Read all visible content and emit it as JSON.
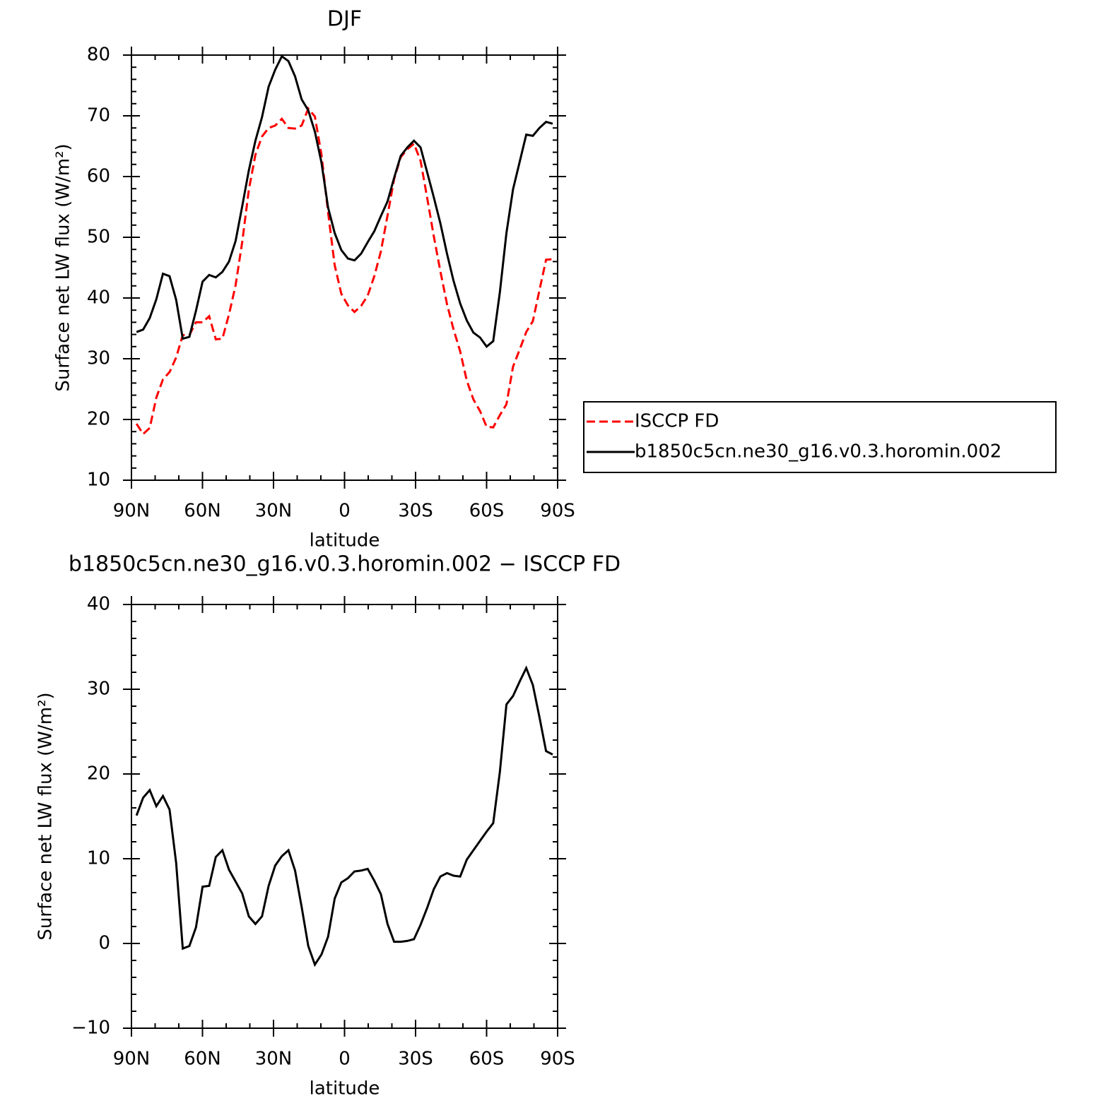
{
  "chart_data": [
    {
      "type": "line",
      "title": "DJF",
      "x_label": "latitude",
      "y_label": "Surface net LW flux (W/m²)",
      "xlim": [
        90,
        -90
      ],
      "xticks": [
        {
          "value": 90,
          "label": "90N"
        },
        {
          "value": 60,
          "label": "60N"
        },
        {
          "value": 30,
          "label": "30N"
        },
        0,
        {
          "value": -30,
          "label": "30S"
        },
        {
          "value": -60,
          "label": "60S"
        },
        {
          "value": -90,
          "label": "90S"
        }
      ],
      "ylim": [
        10,
        80
      ],
      "yticks": [
        10,
        20,
        30,
        40,
        50,
        60,
        70,
        80
      ],
      "legend": "right",
      "x": [
        87.86,
        85.07,
        82.28,
        79.49,
        76.7,
        73.91,
        71.12,
        68.33,
        65.54,
        62.75,
        59.96,
        57.17,
        54.38,
        51.59,
        48.8,
        46.01,
        43.22,
        40.43,
        37.64,
        34.85,
        32.06,
        29.27,
        26.48,
        23.69,
        20.9,
        18.11,
        15.32,
        12.53,
        9.74,
        6.95,
        4.16,
        1.37,
        -1.42,
        -4.21,
        -7.0,
        -9.79,
        -12.58,
        -15.37,
        -18.16,
        -20.95,
        -23.74,
        -26.53,
        -29.32,
        -32.11,
        -34.9,
        -37.69,
        -40.48,
        -43.27,
        -46.06,
        -48.85,
        -51.64,
        -54.43,
        -57.22,
        -60.01,
        -62.8,
        -65.59,
        -68.38,
        -71.17,
        -73.96,
        -76.75,
        -79.54,
        -82.33,
        -85.12,
        -87.91
      ],
      "series": [
        {
          "name": "ISCCP FD",
          "color": "#ff0000",
          "line_style": "dashed",
          "values": [
            19.3,
            17.6,
            18.6,
            23.6,
            26.6,
            27.8,
            30.2,
            33.9,
            33.9,
            36.0,
            36.0,
            37.0,
            33.2,
            33.3,
            37.3,
            42.1,
            49.2,
            57.8,
            63.6,
            66.6,
            68.0,
            68.4,
            69.5,
            68.0,
            67.9,
            68.4,
            71.2,
            69.9,
            63.6,
            54.1,
            45.4,
            40.7,
            38.8,
            37.7,
            38.7,
            40.4,
            43.6,
            47.7,
            53.6,
            59.6,
            63.2,
            64.5,
            65.4,
            62.6,
            56.5,
            50.2,
            44.4,
            39.0,
            34.8,
            31.2,
            26.4,
            23.3,
            21.4,
            18.8,
            18.7,
            20.7,
            22.5,
            28.7,
            31.5,
            34.4,
            36.2,
            41.3,
            46.3,
            46.4
          ]
        },
        {
          "name": "b1850c5cn.ne30_g16.v0.3.horomin.002",
          "color": "#000000",
          "line_style": "solid",
          "values": [
            34.4,
            34.8,
            36.7,
            39.8,
            44.0,
            43.6,
            39.7,
            33.3,
            33.6,
            37.9,
            42.7,
            43.8,
            43.4,
            44.3,
            46.0,
            49.4,
            55.1,
            61.0,
            65.9,
            69.8,
            74.8,
            77.6,
            79.8,
            79.0,
            76.5,
            72.7,
            70.9,
            67.4,
            62.3,
            54.9,
            50.7,
            47.9,
            46.5,
            46.2,
            47.3,
            49.2,
            51.0,
            53.5,
            55.9,
            59.8,
            63.4,
            64.8,
            65.9,
            64.8,
            60.7,
            56.6,
            52.3,
            47.3,
            42.8,
            39.1,
            36.3,
            34.3,
            33.5,
            32.0,
            32.9,
            40.9,
            50.7,
            57.9,
            62.4,
            66.9,
            66.7,
            68.0,
            69.0,
            68.7
          ]
        }
      ]
    },
    {
      "type": "line",
      "title": "b1850c5cn.ne30_g16.v0.3.horomin.002 − ISCCP FD",
      "x_label": "latitude",
      "y_label": "Surface net LW flux (W/m²)",
      "xlim": [
        90,
        -90
      ],
      "xticks": [
        {
          "value": 90,
          "label": "90N"
        },
        {
          "value": 60,
          "label": "60N"
        },
        {
          "value": 30,
          "label": "30N"
        },
        0,
        {
          "value": -30,
          "label": "30S"
        },
        {
          "value": -60,
          "label": "60S"
        },
        {
          "value": -90,
          "label": "90S"
        }
      ],
      "ylim": [
        -10,
        40
      ],
      "yticks": [
        {
          "value": -10,
          "label": "−10"
        },
        0,
        10,
        20,
        30,
        40
      ],
      "x": [
        87.86,
        85.07,
        82.28,
        79.49,
        76.7,
        73.91,
        71.12,
        68.33,
        65.54,
        62.75,
        59.96,
        57.17,
        54.38,
        51.59,
        48.8,
        46.01,
        43.22,
        40.43,
        37.64,
        34.85,
        32.06,
        29.27,
        26.48,
        23.69,
        20.9,
        18.11,
        15.32,
        12.53,
        9.74,
        6.95,
        4.16,
        1.37,
        -1.42,
        -4.21,
        -7.0,
        -9.79,
        -12.58,
        -15.37,
        -18.16,
        -20.95,
        -23.74,
        -26.53,
        -29.32,
        -32.11,
        -34.9,
        -37.69,
        -40.48,
        -43.27,
        -46.06,
        -48.85,
        -51.64,
        -54.43,
        -57.22,
        -60.01,
        -62.8,
        -65.59,
        -68.38,
        -71.17,
        -73.96,
        -76.75,
        -79.54,
        -82.33,
        -85.12,
        -87.91
      ],
      "series": [
        {
          "color": "#000000",
          "line_style": "solid",
          "values": [
            15.1,
            17.2,
            18.1,
            16.2,
            17.4,
            15.8,
            9.5,
            -0.6,
            -0.3,
            1.9,
            6.7,
            6.8,
            10.2,
            11.0,
            8.7,
            7.3,
            5.9,
            3.2,
            2.3,
            3.2,
            6.8,
            9.2,
            10.3,
            11.0,
            8.6,
            4.3,
            -0.3,
            -2.5,
            -1.3,
            0.8,
            5.3,
            7.2,
            7.7,
            8.5,
            8.6,
            8.8,
            7.4,
            5.8,
            2.3,
            0.2,
            0.2,
            0.3,
            0.5,
            2.2,
            4.2,
            6.4,
            7.9,
            8.3,
            8.0,
            7.9,
            9.9,
            11.0,
            12.1,
            13.2,
            14.2,
            20.2,
            28.2,
            29.2,
            30.9,
            32.5,
            30.5,
            26.7,
            22.7,
            22.3
          ]
        }
      ]
    }
  ]
}
